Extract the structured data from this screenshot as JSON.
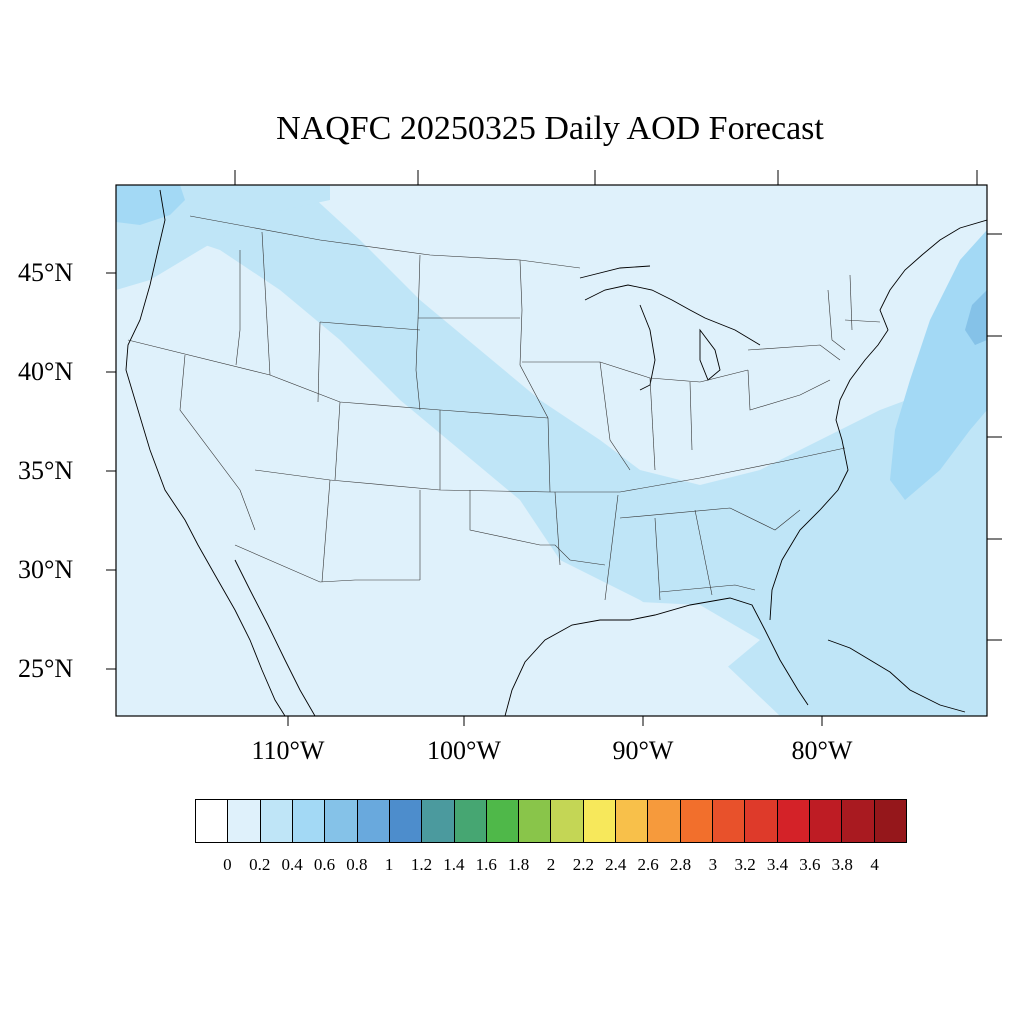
{
  "title": "NAQFC 20250325 Daily AOD Forecast",
  "map": {
    "extent": {
      "lon_min": -119,
      "lon_max": -70,
      "lat_min": 22.5,
      "lat_max": 49.3
    },
    "lat_labels": [
      "45°N",
      "40°N",
      "35°N",
      "30°N",
      "25°N"
    ],
    "lon_labels": [
      "110°W",
      "100°W",
      "90°W",
      "80°W"
    ],
    "background_aod_color": "#dff1fb",
    "plume_color": "#bfe5f7",
    "high_color": "#a3d9f5",
    "peak_color": "#85c2e8"
  },
  "colorbar": {
    "colors": [
      "#ffffff",
      "#dff1fb",
      "#bfe5f7",
      "#a3d9f5",
      "#85c2e8",
      "#69a9dd",
      "#4d8dcc",
      "#4b9a9e",
      "#46a672",
      "#4fb849",
      "#89c54a",
      "#c4d655",
      "#f7e85b",
      "#f8c04a",
      "#f69a3c",
      "#f26f2c",
      "#e8512b",
      "#de3a2a",
      "#d42228",
      "#be1c24",
      "#a91a20",
      "#95171b"
    ],
    "labels": [
      "0",
      "0.2",
      "0.4",
      "0.6",
      "0.8",
      "1",
      "1.2",
      "1.4",
      "1.6",
      "1.8",
      "2",
      "2.2",
      "2.4",
      "2.6",
      "2.8",
      "3",
      "3.2",
      "3.4",
      "3.6",
      "3.8",
      "4"
    ]
  }
}
